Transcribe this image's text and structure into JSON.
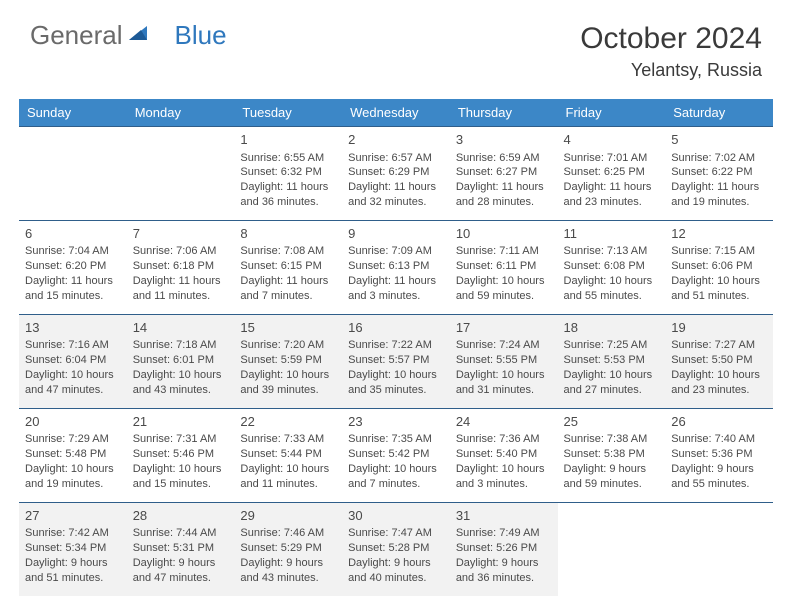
{
  "logo": {
    "part1": "General",
    "part2": "Blue"
  },
  "title": "October 2024",
  "location": "Yelantsy, Russia",
  "colors": {
    "header_bg": "#3c87c7",
    "header_text": "#ffffff",
    "row_border": "#2f5e8a",
    "shaded_row": "#f2f2f2",
    "logo_gray": "#6a6a6a",
    "logo_blue": "#2f78bd"
  },
  "day_headers": [
    "Sunday",
    "Monday",
    "Tuesday",
    "Wednesday",
    "Thursday",
    "Friday",
    "Saturday"
  ],
  "weeks": [
    {
      "shaded": false,
      "days": [
        null,
        null,
        {
          "n": "1",
          "sunrise": "Sunrise: 6:55 AM",
          "sunset": "Sunset: 6:32 PM",
          "daylight": "Daylight: 11 hours and 36 minutes."
        },
        {
          "n": "2",
          "sunrise": "Sunrise: 6:57 AM",
          "sunset": "Sunset: 6:29 PM",
          "daylight": "Daylight: 11 hours and 32 minutes."
        },
        {
          "n": "3",
          "sunrise": "Sunrise: 6:59 AM",
          "sunset": "Sunset: 6:27 PM",
          "daylight": "Daylight: 11 hours and 28 minutes."
        },
        {
          "n": "4",
          "sunrise": "Sunrise: 7:01 AM",
          "sunset": "Sunset: 6:25 PM",
          "daylight": "Daylight: 11 hours and 23 minutes."
        },
        {
          "n": "5",
          "sunrise": "Sunrise: 7:02 AM",
          "sunset": "Sunset: 6:22 PM",
          "daylight": "Daylight: 11 hours and 19 minutes."
        }
      ]
    },
    {
      "shaded": false,
      "days": [
        {
          "n": "6",
          "sunrise": "Sunrise: 7:04 AM",
          "sunset": "Sunset: 6:20 PM",
          "daylight": "Daylight: 11 hours and 15 minutes."
        },
        {
          "n": "7",
          "sunrise": "Sunrise: 7:06 AM",
          "sunset": "Sunset: 6:18 PM",
          "daylight": "Daylight: 11 hours and 11 minutes."
        },
        {
          "n": "8",
          "sunrise": "Sunrise: 7:08 AM",
          "sunset": "Sunset: 6:15 PM",
          "daylight": "Daylight: 11 hours and 7 minutes."
        },
        {
          "n": "9",
          "sunrise": "Sunrise: 7:09 AM",
          "sunset": "Sunset: 6:13 PM",
          "daylight": "Daylight: 11 hours and 3 minutes."
        },
        {
          "n": "10",
          "sunrise": "Sunrise: 7:11 AM",
          "sunset": "Sunset: 6:11 PM",
          "daylight": "Daylight: 10 hours and 59 minutes."
        },
        {
          "n": "11",
          "sunrise": "Sunrise: 7:13 AM",
          "sunset": "Sunset: 6:08 PM",
          "daylight": "Daylight: 10 hours and 55 minutes."
        },
        {
          "n": "12",
          "sunrise": "Sunrise: 7:15 AM",
          "sunset": "Sunset: 6:06 PM",
          "daylight": "Daylight: 10 hours and 51 minutes."
        }
      ]
    },
    {
      "shaded": true,
      "days": [
        {
          "n": "13",
          "sunrise": "Sunrise: 7:16 AM",
          "sunset": "Sunset: 6:04 PM",
          "daylight": "Daylight: 10 hours and 47 minutes."
        },
        {
          "n": "14",
          "sunrise": "Sunrise: 7:18 AM",
          "sunset": "Sunset: 6:01 PM",
          "daylight": "Daylight: 10 hours and 43 minutes."
        },
        {
          "n": "15",
          "sunrise": "Sunrise: 7:20 AM",
          "sunset": "Sunset: 5:59 PM",
          "daylight": "Daylight: 10 hours and 39 minutes."
        },
        {
          "n": "16",
          "sunrise": "Sunrise: 7:22 AM",
          "sunset": "Sunset: 5:57 PM",
          "daylight": "Daylight: 10 hours and 35 minutes."
        },
        {
          "n": "17",
          "sunrise": "Sunrise: 7:24 AM",
          "sunset": "Sunset: 5:55 PM",
          "daylight": "Daylight: 10 hours and 31 minutes."
        },
        {
          "n": "18",
          "sunrise": "Sunrise: 7:25 AM",
          "sunset": "Sunset: 5:53 PM",
          "daylight": "Daylight: 10 hours and 27 minutes."
        },
        {
          "n": "19",
          "sunrise": "Sunrise: 7:27 AM",
          "sunset": "Sunset: 5:50 PM",
          "daylight": "Daylight: 10 hours and 23 minutes."
        }
      ]
    },
    {
      "shaded": false,
      "days": [
        {
          "n": "20",
          "sunrise": "Sunrise: 7:29 AM",
          "sunset": "Sunset: 5:48 PM",
          "daylight": "Daylight: 10 hours and 19 minutes."
        },
        {
          "n": "21",
          "sunrise": "Sunrise: 7:31 AM",
          "sunset": "Sunset: 5:46 PM",
          "daylight": "Daylight: 10 hours and 15 minutes."
        },
        {
          "n": "22",
          "sunrise": "Sunrise: 7:33 AM",
          "sunset": "Sunset: 5:44 PM",
          "daylight": "Daylight: 10 hours and 11 minutes."
        },
        {
          "n": "23",
          "sunrise": "Sunrise: 7:35 AM",
          "sunset": "Sunset: 5:42 PM",
          "daylight": "Daylight: 10 hours and 7 minutes."
        },
        {
          "n": "24",
          "sunrise": "Sunrise: 7:36 AM",
          "sunset": "Sunset: 5:40 PM",
          "daylight": "Daylight: 10 hours and 3 minutes."
        },
        {
          "n": "25",
          "sunrise": "Sunrise: 7:38 AM",
          "sunset": "Sunset: 5:38 PM",
          "daylight": "Daylight: 9 hours and 59 minutes."
        },
        {
          "n": "26",
          "sunrise": "Sunrise: 7:40 AM",
          "sunset": "Sunset: 5:36 PM",
          "daylight": "Daylight: 9 hours and 55 minutes."
        }
      ]
    },
    {
      "shaded": true,
      "days": [
        {
          "n": "27",
          "sunrise": "Sunrise: 7:42 AM",
          "sunset": "Sunset: 5:34 PM",
          "daylight": "Daylight: 9 hours and 51 minutes."
        },
        {
          "n": "28",
          "sunrise": "Sunrise: 7:44 AM",
          "sunset": "Sunset: 5:31 PM",
          "daylight": "Daylight: 9 hours and 47 minutes."
        },
        {
          "n": "29",
          "sunrise": "Sunrise: 7:46 AM",
          "sunset": "Sunset: 5:29 PM",
          "daylight": "Daylight: 9 hours and 43 minutes."
        },
        {
          "n": "30",
          "sunrise": "Sunrise: 7:47 AM",
          "sunset": "Sunset: 5:28 PM",
          "daylight": "Daylight: 9 hours and 40 minutes."
        },
        {
          "n": "31",
          "sunrise": "Sunrise: 7:49 AM",
          "sunset": "Sunset: 5:26 PM",
          "daylight": "Daylight: 9 hours and 36 minutes."
        },
        null,
        null
      ]
    }
  ]
}
